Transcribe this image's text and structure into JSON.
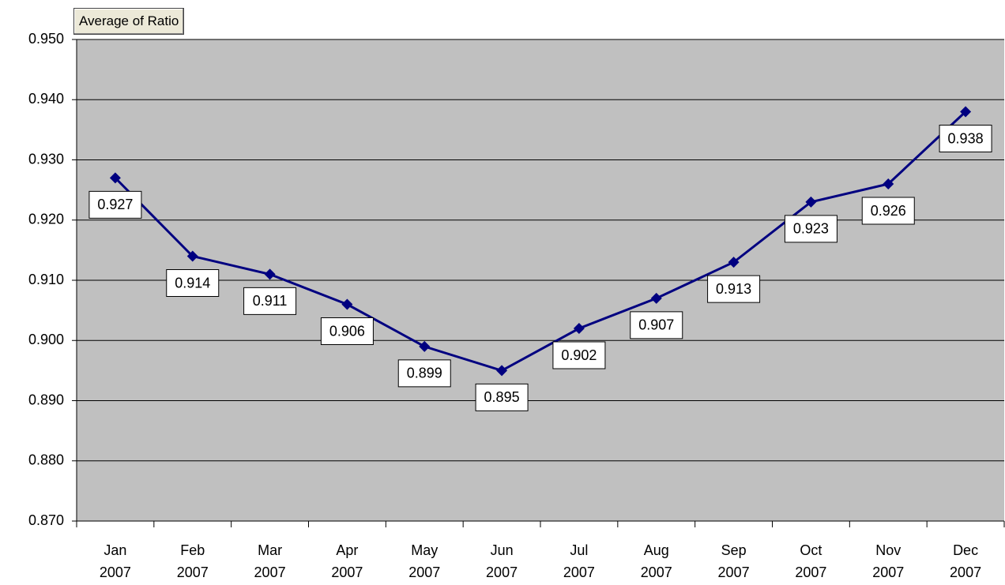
{
  "chart_data": {
    "type": "line",
    "title": "Average of Ratio",
    "categories": [
      "Jan 2007",
      "Feb 2007",
      "Mar 2007",
      "Apr 2007",
      "May 2007",
      "Jun 2007",
      "Jul 2007",
      "Aug 2007",
      "Sep 2007",
      "Oct 2007",
      "Nov 2007",
      "Dec 2007"
    ],
    "series": [
      {
        "color": "#000080",
        "values": [
          0.927,
          0.914,
          0.911,
          0.906,
          0.899,
          0.895,
          0.902,
          0.907,
          0.913,
          0.923,
          0.926,
          0.938
        ]
      }
    ],
    "ylim": [
      0.87,
      0.95
    ],
    "yticks": [
      {
        "value": 0.87,
        "label": "0.870"
      },
      {
        "value": 0.88,
        "label": "0.880"
      },
      {
        "value": 0.89,
        "label": "0.890"
      },
      {
        "value": 0.9,
        "label": "0.900"
      },
      {
        "value": 0.91,
        "label": "0.910"
      },
      {
        "value": 0.92,
        "label": "0.920"
      },
      {
        "value": 0.93,
        "label": "0.930"
      },
      {
        "value": 0.94,
        "label": "0.940"
      },
      {
        "value": 0.95,
        "label": "0.950"
      }
    ],
    "grid": true,
    "plot_background": "#c0c0c0"
  }
}
